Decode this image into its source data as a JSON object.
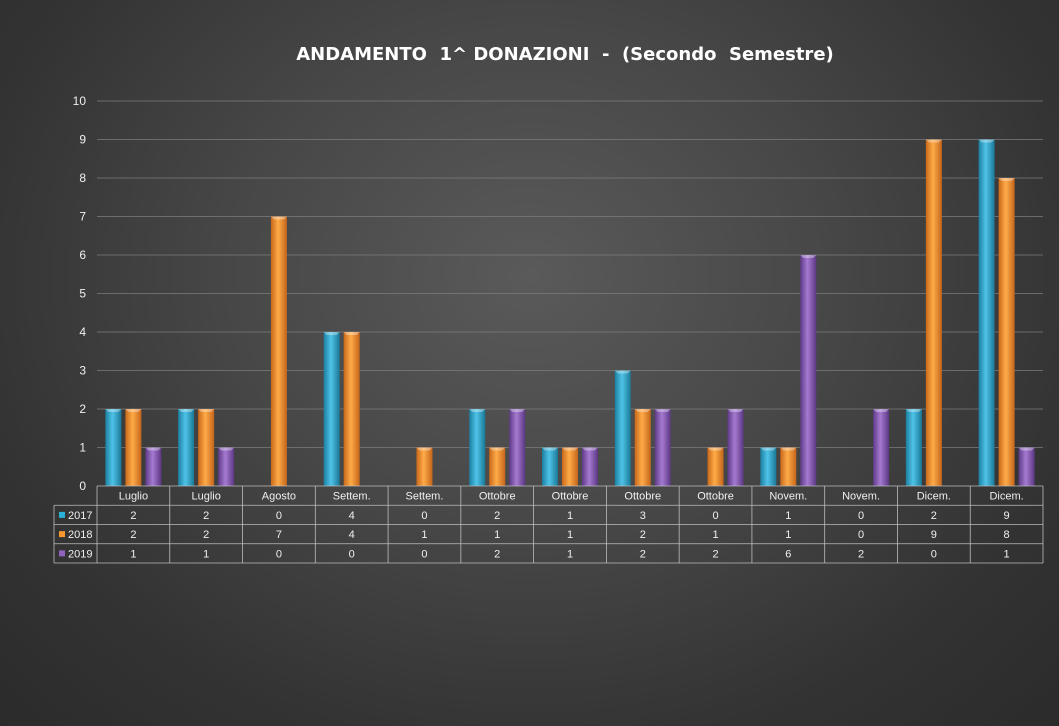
{
  "chart_data": {
    "type": "bar",
    "title": "ANDAMENTO  1^ DONAZIONI  -  (Secondo  Semestre)",
    "categories": [
      "Luglio",
      "Luglio",
      "Agosto",
      "Settem.",
      "Settem.",
      "Ottobre",
      "Ottobre",
      "Ottobre",
      "Ottobre",
      "Novem.",
      "Novem.",
      "Dicem.",
      "Dicem."
    ],
    "series": [
      {
        "name": "2017",
        "values": [
          2,
          2,
          0,
          4,
          0,
          2,
          1,
          3,
          0,
          1,
          0,
          2,
          9
        ],
        "color": "#29a8cf"
      },
      {
        "name": "2018",
        "values": [
          2,
          2,
          7,
          4,
          1,
          1,
          1,
          2,
          1,
          1,
          0,
          9,
          8
        ],
        "color": "#f5902a"
      },
      {
        "name": "2019",
        "values": [
          1,
          1,
          0,
          0,
          0,
          2,
          1,
          2,
          2,
          6,
          2,
          0,
          1
        ],
        "color": "#8a5cb5"
      }
    ],
    "ylim": [
      0,
      10
    ],
    "yticks": [
      0,
      1,
      2,
      3,
      4,
      5,
      6,
      7,
      8,
      9,
      10
    ],
    "grid": true,
    "legend": "data-table"
  }
}
